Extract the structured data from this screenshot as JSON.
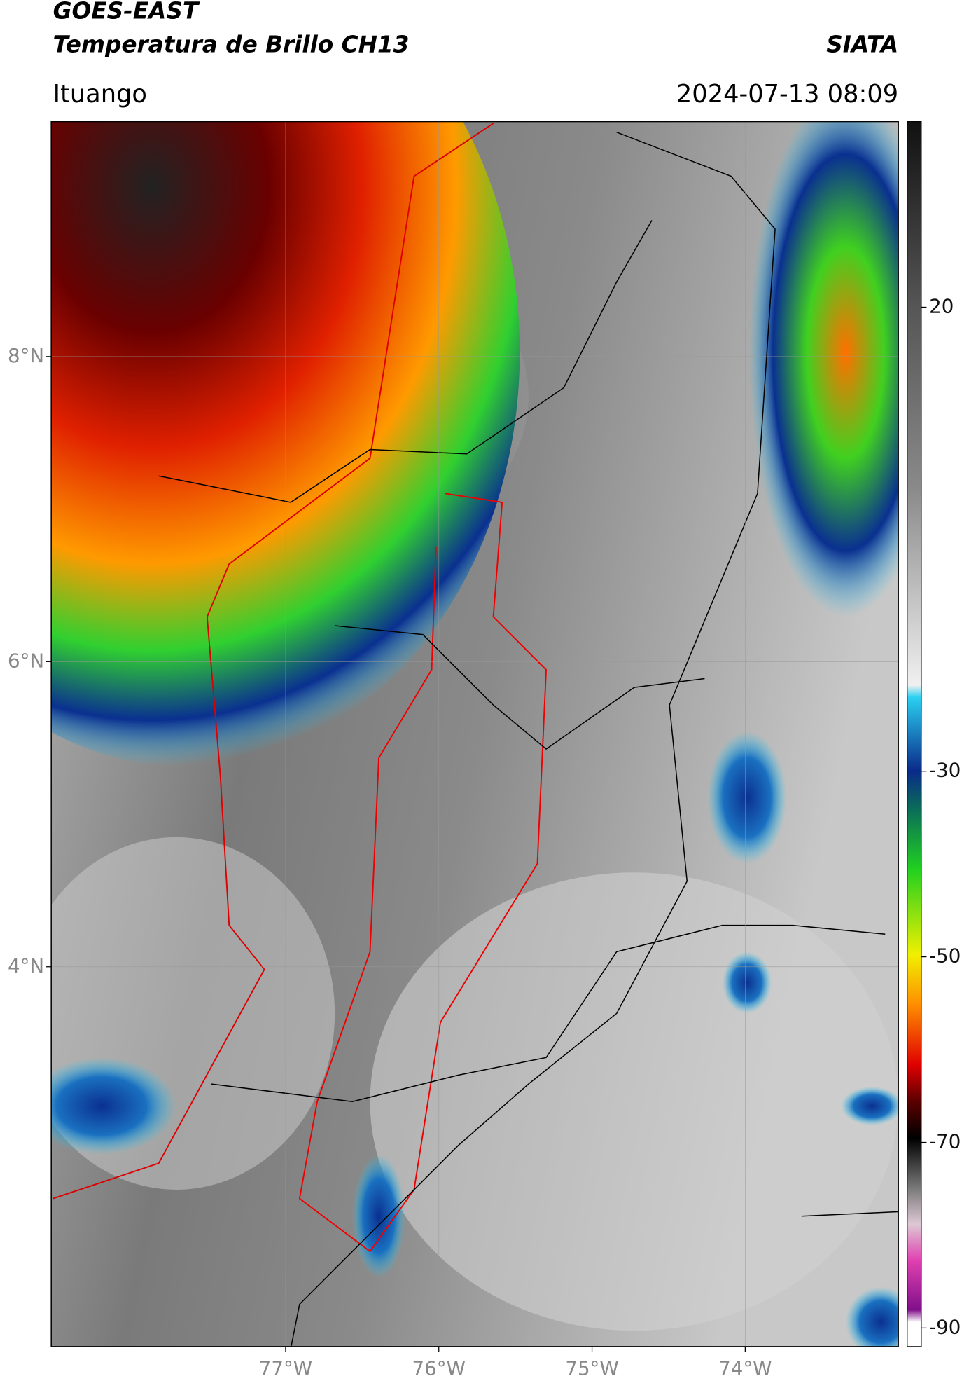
{
  "header": {
    "title_line1": "GOES-EAST",
    "title_line2": "Temperatura de Brillo CH13",
    "org": "SIATA",
    "location": "Ituango",
    "datetime": "2024-07-13 08:09"
  },
  "map": {
    "lonlim": [
      -78.53,
      -73.0
    ],
    "latlim": [
      1.51,
      9.54
    ],
    "xticks": [
      {
        "value": -77,
        "label": "77°W"
      },
      {
        "value": -76,
        "label": "76°W"
      },
      {
        "value": -75,
        "label": "75°W"
      },
      {
        "value": -74,
        "label": "74°W"
      }
    ],
    "yticks": [
      {
        "value": 8,
        "label": "8°N"
      },
      {
        "value": 6,
        "label": "6°N"
      },
      {
        "value": 4,
        "label": "4°N"
      }
    ]
  },
  "colorbar": {
    "lim": [
      -92,
      40
    ],
    "ticks": [
      20,
      -30,
      -50,
      -70,
      -90
    ]
  }
}
